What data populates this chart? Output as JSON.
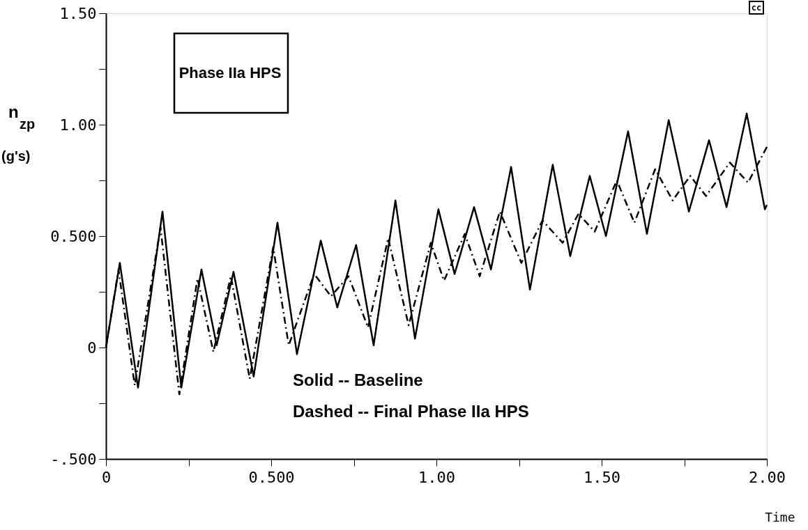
{
  "chart_data": {
    "type": "line",
    "xlabel": "Time",
    "ylabel": "n$_{zp}$ (g's)",
    "annotations": [
      "Phase IIa HPS",
      "Solid -- Baseline",
      "Dashed -- Final Phase IIa HPS",
      "cc"
    ],
    "xlim": [
      0,
      2.0
    ],
    "ylim": [
      -0.5,
      1.5
    ],
    "xticks": [
      0,
      {
        "value": 0.25,
        "label": null
      },
      {
        "value": 0.5,
        "label": "0.500"
      },
      {
        "value": 0.75,
        "label": null
      },
      {
        "value": 1.0,
        "label": "1.00"
      },
      {
        "value": 1.25,
        "label": null
      },
      {
        "value": 1.5,
        "label": "1.50"
      },
      {
        "value": 1.75,
        "label": null
      },
      {
        "value": 2.0,
        "label": "2.00"
      }
    ],
    "yticks": [
      {
        "value": -0.5,
        "label": "-.500"
      },
      {
        "value": -0.25,
        "label": null
      },
      0,
      {
        "value": 0.25,
        "label": null
      },
      {
        "value": 0.5,
        "label": "0.500"
      },
      {
        "value": 0.75,
        "label": null
      },
      {
        "value": 1.0,
        "label": "1.00"
      },
      {
        "value": 1.25,
        "label": null
      },
      {
        "value": 1.5,
        "label": "1.50"
      }
    ],
    "grid": false,
    "legend": false,
    "marker": "none",
    "series": [
      {
        "color": "#000000",
        "line_style": "solid",
        "x": [
          0,
          0.042,
          0.097,
          0.171,
          0.228,
          0.289,
          0.335,
          0.386,
          0.447,
          0.519,
          0.578,
          0.65,
          0.7,
          0.757,
          0.81,
          0.876,
          0.935,
          1.006,
          1.055,
          1.114,
          1.165,
          1.226,
          1.283,
          1.352,
          1.405,
          1.464,
          1.513,
          1.58,
          1.637,
          1.703,
          1.764,
          1.825,
          1.878,
          1.939,
          1.994,
          2.0
        ],
        "values": [
          0,
          0.38,
          -0.18,
          0.61,
          -0.18,
          0.35,
          0.01,
          0.34,
          -0.13,
          0.56,
          -0.03,
          0.48,
          0.18,
          0.46,
          0.01,
          0.66,
          0.04,
          0.62,
          0.33,
          0.63,
          0.35,
          0.81,
          0.26,
          0.82,
          0.41,
          0.77,
          0.5,
          0.97,
          0.51,
          1.02,
          0.61,
          0.93,
          0.63,
          1.05,
          0.62,
          0.64
        ]
      },
      {
        "color": "#000000",
        "line_style": "dashed",
        "x": [
          0,
          0.038,
          0.087,
          0.165,
          0.222,
          0.277,
          0.325,
          0.378,
          0.435,
          0.506,
          0.553,
          0.63,
          0.681,
          0.734,
          0.793,
          0.854,
          0.916,
          0.983,
          1.023,
          1.086,
          1.131,
          1.192,
          1.257,
          1.321,
          1.382,
          1.43,
          1.479,
          1.546,
          1.599,
          1.662,
          1.715,
          1.768,
          1.816,
          1.888,
          1.943,
          2.0
        ],
        "values": [
          0,
          0.35,
          -0.17,
          0.54,
          -0.21,
          0.31,
          -0.02,
          0.32,
          -0.14,
          0.45,
          0.01,
          0.33,
          0.23,
          0.32,
          0.09,
          0.49,
          0.1,
          0.47,
          0.3,
          0.51,
          0.32,
          0.61,
          0.38,
          0.57,
          0.47,
          0.6,
          0.52,
          0.75,
          0.56,
          0.8,
          0.66,
          0.77,
          0.68,
          0.83,
          0.74,
          0.9
        ]
      }
    ]
  }
}
